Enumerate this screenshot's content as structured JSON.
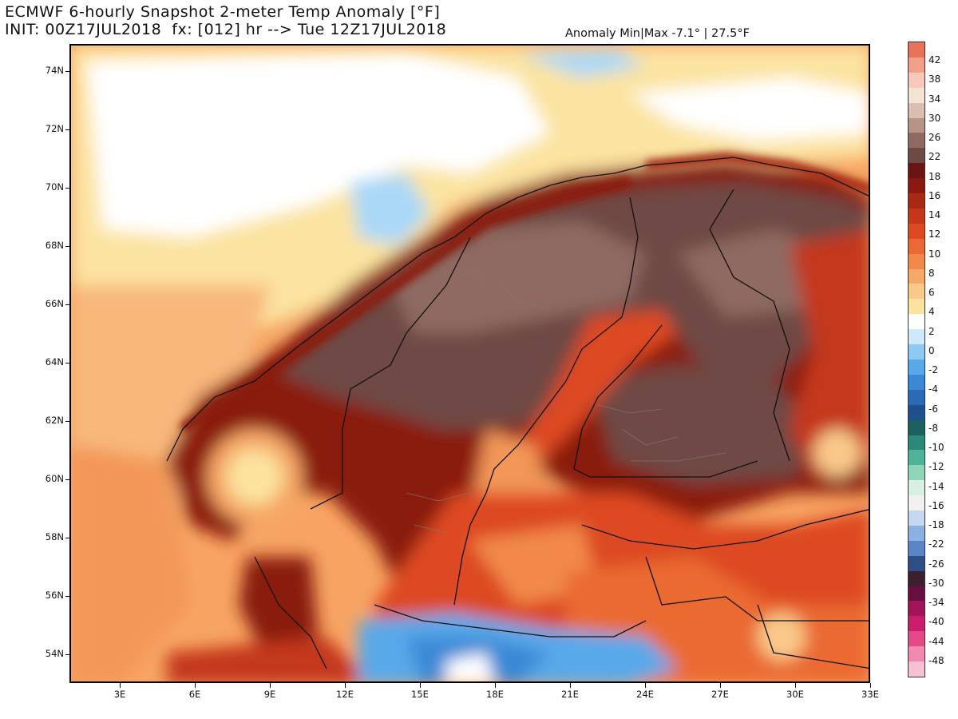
{
  "header": {
    "title_line1": "ECMWF 6-hourly Snapshot 2-meter Temp Anomaly [°F]",
    "title_line2": "INIT: 00Z17JUL2018  fx: [012] hr --> Tue 12Z17JUL2018",
    "anomaly_minmax": "Anomaly Min|Max -7.1° | 27.5°F"
  },
  "map": {
    "lat_labels": [
      "74N",
      "72N",
      "70N",
      "68N",
      "66N",
      "64N",
      "62N",
      "60N",
      "58N",
      "56N",
      "54N"
    ],
    "lon_labels": [
      "3E",
      "6E",
      "9E",
      "12E",
      "15E",
      "18E",
      "21E",
      "24E",
      "27E",
      "30E",
      "33E"
    ]
  },
  "colorbar": {
    "labels": [
      "42",
      "38",
      "34",
      "30",
      "26",
      "22",
      "18",
      "16",
      "14",
      "12",
      "10",
      "8",
      "6",
      "4",
      "2",
      "0",
      "-2",
      "-4",
      "-6",
      "-8",
      "-10",
      "-12",
      "-14",
      "-16",
      "-18",
      "-22",
      "-26",
      "-30",
      "-34",
      "-40",
      "-44",
      "-48"
    ],
    "colors": [
      "#e8735a",
      "#f3a08a",
      "#f7c9bb",
      "#f3e3d3",
      "#d8bfb2",
      "#b89486",
      "#8e6a62",
      "#6e4a45",
      "#6a1414",
      "#8a1a10",
      "#a82a12",
      "#c4381a",
      "#dd4a22",
      "#ea6a33",
      "#f18a48",
      "#f6a866",
      "#f9c98a",
      "#fbe39f",
      "#ffffff",
      "#cde9fb",
      "#8ccaf5",
      "#58a9ea",
      "#3a88d6",
      "#2a6bb8",
      "#1f4f8c",
      "#1d6060",
      "#2a8a7a",
      "#4fb39a",
      "#8fd5b8",
      "#d8f0e0",
      "#f1f1f1",
      "#c6d8ef",
      "#8ab1e0",
      "#5a86c8",
      "#2e4f86",
      "#3a2030",
      "#6a1040",
      "#a0155a",
      "#c81e6c",
      "#e24b88",
      "#f08ab0",
      "#f8c0d4"
    ]
  }
}
